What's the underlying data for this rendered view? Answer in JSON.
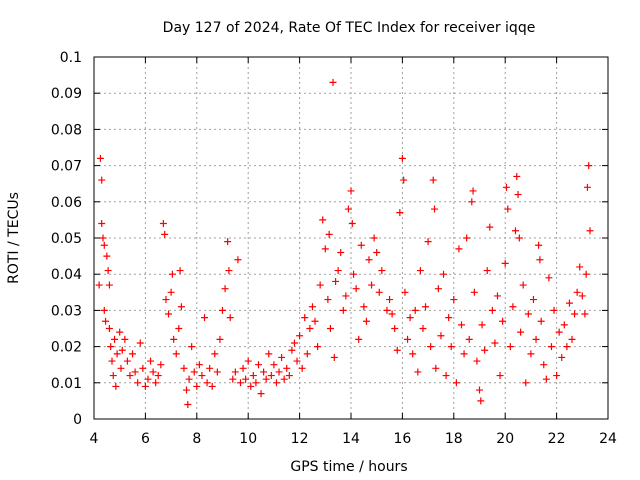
{
  "chart_data": {
    "type": "scatter",
    "title": "Day 127 of 2024, Rate Of TEC Index for receiver iqqe",
    "xlabel": "GPS time / hours",
    "ylabel": "ROTI / TECUs",
    "xlim": [
      4,
      24
    ],
    "ylim": [
      0,
      0.1
    ],
    "x_ticks": [
      4,
      6,
      8,
      10,
      12,
      14,
      16,
      18,
      20,
      22,
      24
    ],
    "x_tick_labels": [
      "4",
      "6",
      "8",
      "10",
      "12",
      "14",
      "16",
      "18",
      "20",
      "22",
      "24"
    ],
    "y_ticks": [
      0,
      0.01,
      0.02,
      0.03,
      0.04,
      0.05,
      0.06,
      0.07,
      0.08,
      0.09,
      0.1
    ],
    "y_tick_labels": [
      "0",
      "0.01",
      "0.02",
      "0.03",
      "0.04",
      "0.05",
      "0.06",
      "0.07",
      "0.08",
      "0.09",
      "0.1"
    ],
    "grid": true,
    "marker": "+",
    "series_color": "#ff0000",
    "series": [
      {
        "name": "ROTI",
        "points": [
          [
            4.2,
            0.037
          ],
          [
            4.25,
            0.072
          ],
          [
            4.3,
            0.066
          ],
          [
            4.3,
            0.054
          ],
          [
            4.35,
            0.05
          ],
          [
            4.4,
            0.048
          ],
          [
            4.4,
            0.03
          ],
          [
            4.45,
            0.027
          ],
          [
            4.5,
            0.045
          ],
          [
            4.55,
            0.041
          ],
          [
            4.6,
            0.037
          ],
          [
            4.6,
            0.025
          ],
          [
            4.65,
            0.02
          ],
          [
            4.7,
            0.016
          ],
          [
            4.75,
            0.012
          ],
          [
            4.8,
            0.022
          ],
          [
            4.85,
            0.009
          ],
          [
            4.9,
            0.018
          ],
          [
            5.0,
            0.024
          ],
          [
            5.05,
            0.014
          ],
          [
            5.1,
            0.019
          ],
          [
            5.2,
            0.022
          ],
          [
            5.3,
            0.016
          ],
          [
            5.4,
            0.012
          ],
          [
            5.5,
            0.018
          ],
          [
            5.6,
            0.013
          ],
          [
            5.7,
            0.01
          ],
          [
            5.8,
            0.021
          ],
          [
            5.9,
            0.014
          ],
          [
            6.0,
            0.009
          ],
          [
            6.1,
            0.011
          ],
          [
            6.2,
            0.016
          ],
          [
            6.3,
            0.013
          ],
          [
            6.4,
            0.01
          ],
          [
            6.5,
            0.012
          ],
          [
            6.6,
            0.015
          ],
          [
            6.7,
            0.054
          ],
          [
            6.75,
            0.051
          ],
          [
            6.8,
            0.033
          ],
          [
            6.9,
            0.029
          ],
          [
            7.0,
            0.035
          ],
          [
            7.05,
            0.04
          ],
          [
            7.1,
            0.022
          ],
          [
            7.2,
            0.018
          ],
          [
            7.3,
            0.025
          ],
          [
            7.35,
            0.041
          ],
          [
            7.4,
            0.031
          ],
          [
            7.5,
            0.014
          ],
          [
            7.6,
            0.008
          ],
          [
            7.65,
            0.004
          ],
          [
            7.7,
            0.011
          ],
          [
            7.8,
            0.02
          ],
          [
            7.9,
            0.013
          ],
          [
            8.0,
            0.009
          ],
          [
            8.1,
            0.015
          ],
          [
            8.2,
            0.012
          ],
          [
            8.3,
            0.028
          ],
          [
            8.4,
            0.01
          ],
          [
            8.5,
            0.014
          ],
          [
            8.6,
            0.009
          ],
          [
            8.7,
            0.018
          ],
          [
            8.8,
            0.013
          ],
          [
            8.9,
            0.022
          ],
          [
            9.0,
            0.03
          ],
          [
            9.1,
            0.036
          ],
          [
            9.2,
            0.049
          ],
          [
            9.25,
            0.041
          ],
          [
            9.3,
            0.028
          ],
          [
            9.4,
            0.011
          ],
          [
            9.5,
            0.013
          ],
          [
            9.6,
            0.044
          ],
          [
            9.7,
            0.01
          ],
          [
            9.8,
            0.014
          ],
          [
            9.9,
            0.011
          ],
          [
            10.0,
            0.016
          ],
          [
            10.1,
            0.009
          ],
          [
            10.2,
            0.012
          ],
          [
            10.3,
            0.01
          ],
          [
            10.4,
            0.015
          ],
          [
            10.5,
            0.007
          ],
          [
            10.6,
            0.013
          ],
          [
            10.7,
            0.011
          ],
          [
            10.8,
            0.018
          ],
          [
            10.9,
            0.012
          ],
          [
            11.0,
            0.015
          ],
          [
            11.1,
            0.01
          ],
          [
            11.2,
            0.013
          ],
          [
            11.3,
            0.017
          ],
          [
            11.4,
            0.011
          ],
          [
            11.5,
            0.014
          ],
          [
            11.6,
            0.012
          ],
          [
            11.7,
            0.019
          ],
          [
            11.8,
            0.021
          ],
          [
            11.9,
            0.016
          ],
          [
            12.0,
            0.023
          ],
          [
            12.1,
            0.014
          ],
          [
            12.2,
            0.028
          ],
          [
            12.3,
            0.018
          ],
          [
            12.4,
            0.025
          ],
          [
            12.5,
            0.031
          ],
          [
            12.6,
            0.027
          ],
          [
            12.7,
            0.02
          ],
          [
            12.8,
            0.037
          ],
          [
            12.9,
            0.055
          ],
          [
            13.0,
            0.047
          ],
          [
            13.1,
            0.033
          ],
          [
            13.15,
            0.051
          ],
          [
            13.2,
            0.025
          ],
          [
            13.3,
            0.093
          ],
          [
            13.35,
            0.017
          ],
          [
            13.4,
            0.038
          ],
          [
            13.5,
            0.041
          ],
          [
            13.6,
            0.046
          ],
          [
            13.7,
            0.03
          ],
          [
            13.8,
            0.034
          ],
          [
            13.9,
            0.058
          ],
          [
            14.0,
            0.063
          ],
          [
            14.05,
            0.054
          ],
          [
            14.1,
            0.04
          ],
          [
            14.2,
            0.036
          ],
          [
            14.3,
            0.022
          ],
          [
            14.4,
            0.048
          ],
          [
            14.5,
            0.031
          ],
          [
            14.6,
            0.027
          ],
          [
            14.7,
            0.044
          ],
          [
            14.8,
            0.037
          ],
          [
            14.9,
            0.05
          ],
          [
            15.0,
            0.046
          ],
          [
            15.1,
            0.035
          ],
          [
            15.2,
            0.041
          ],
          [
            15.4,
            0.03
          ],
          [
            15.5,
            0.033
          ],
          [
            15.6,
            0.029
          ],
          [
            15.7,
            0.025
          ],
          [
            15.8,
            0.019
          ],
          [
            15.9,
            0.057
          ],
          [
            16.0,
            0.072
          ],
          [
            16.05,
            0.066
          ],
          [
            16.1,
            0.035
          ],
          [
            16.2,
            0.022
          ],
          [
            16.3,
            0.028
          ],
          [
            16.4,
            0.018
          ],
          [
            16.5,
            0.03
          ],
          [
            16.6,
            0.013
          ],
          [
            16.7,
            0.041
          ],
          [
            16.8,
            0.025
          ],
          [
            16.9,
            0.031
          ],
          [
            17.0,
            0.049
          ],
          [
            17.1,
            0.02
          ],
          [
            17.2,
            0.066
          ],
          [
            17.25,
            0.058
          ],
          [
            17.3,
            0.014
          ],
          [
            17.4,
            0.036
          ],
          [
            17.5,
            0.023
          ],
          [
            17.6,
            0.04
          ],
          [
            17.7,
            0.012
          ],
          [
            17.8,
            0.028
          ],
          [
            17.9,
            0.02
          ],
          [
            18.0,
            0.033
          ],
          [
            18.1,
            0.01
          ],
          [
            18.2,
            0.047
          ],
          [
            18.3,
            0.026
          ],
          [
            18.4,
            0.018
          ],
          [
            18.5,
            0.05
          ],
          [
            18.6,
            0.022
          ],
          [
            18.7,
            0.06
          ],
          [
            18.75,
            0.063
          ],
          [
            18.8,
            0.035
          ],
          [
            18.9,
            0.016
          ],
          [
            19.0,
            0.008
          ],
          [
            19.05,
            0.005
          ],
          [
            19.1,
            0.026
          ],
          [
            19.2,
            0.019
          ],
          [
            19.3,
            0.041
          ],
          [
            19.4,
            0.053
          ],
          [
            19.5,
            0.03
          ],
          [
            19.6,
            0.021
          ],
          [
            19.7,
            0.034
          ],
          [
            19.8,
            0.012
          ],
          [
            19.9,
            0.027
          ],
          [
            20.0,
            0.043
          ],
          [
            20.05,
            0.064
          ],
          [
            20.1,
            0.058
          ],
          [
            20.2,
            0.02
          ],
          [
            20.3,
            0.031
          ],
          [
            20.4,
            0.052
          ],
          [
            20.45,
            0.067
          ],
          [
            20.5,
            0.062
          ],
          [
            20.55,
            0.05
          ],
          [
            20.6,
            0.024
          ],
          [
            20.7,
            0.037
          ],
          [
            20.8,
            0.01
          ],
          [
            20.9,
            0.029
          ],
          [
            21.0,
            0.018
          ],
          [
            21.1,
            0.033
          ],
          [
            21.2,
            0.022
          ],
          [
            21.3,
            0.048
          ],
          [
            21.35,
            0.044
          ],
          [
            21.4,
            0.027
          ],
          [
            21.5,
            0.015
          ],
          [
            21.6,
            0.011
          ],
          [
            21.7,
            0.039
          ],
          [
            21.8,
            0.02
          ],
          [
            21.9,
            0.03
          ],
          [
            22.0,
            0.012
          ],
          [
            22.1,
            0.024
          ],
          [
            22.2,
            0.017
          ],
          [
            22.3,
            0.026
          ],
          [
            22.4,
            0.02
          ],
          [
            22.5,
            0.032
          ],
          [
            22.6,
            0.022
          ],
          [
            22.7,
            0.029
          ],
          [
            22.8,
            0.035
          ],
          [
            22.9,
            0.042
          ],
          [
            23.0,
            0.034
          ],
          [
            23.1,
            0.029
          ],
          [
            23.15,
            0.04
          ],
          [
            23.2,
            0.064
          ],
          [
            23.25,
            0.07
          ],
          [
            23.3,
            0.052
          ]
        ]
      }
    ]
  }
}
